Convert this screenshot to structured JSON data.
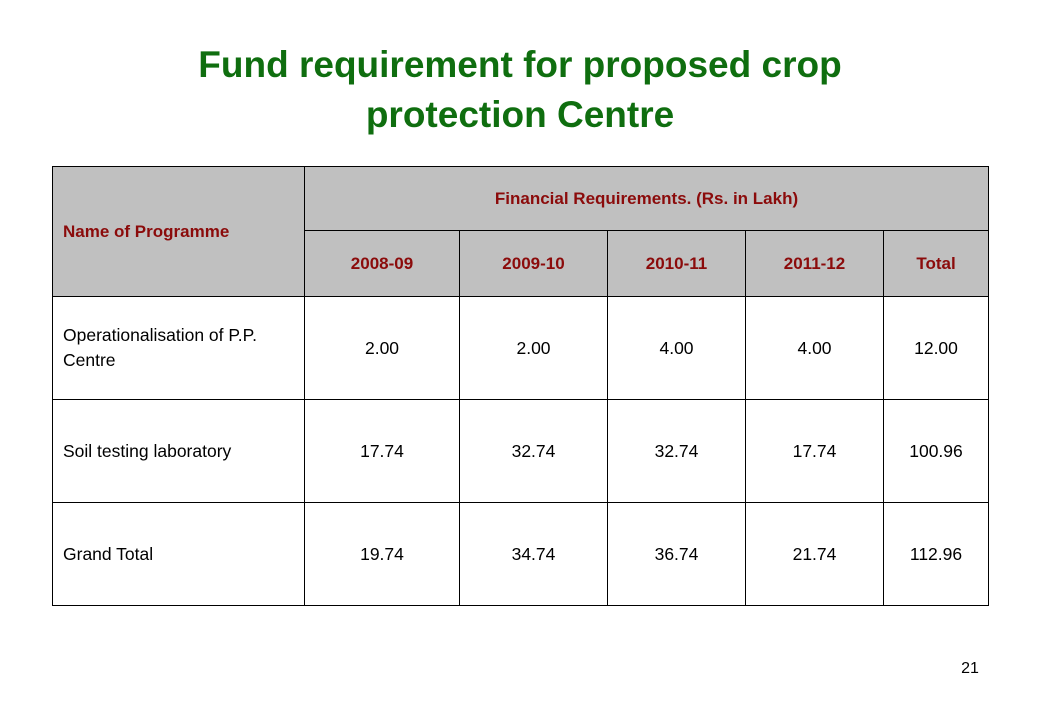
{
  "slide": {
    "title_line1": "Fund requirement for proposed crop",
    "title_line2": "protection Centre",
    "page_number": "21",
    "title_color": "#0f6e0f",
    "header_text_color": "#8b0b0b",
    "header_bg_color": "#c0c0c0"
  },
  "table": {
    "name_header": "Name of Programme",
    "group_header": "Financial Requirements. (Rs. in Lakh)",
    "columns": [
      "2008-09",
      "2009-10",
      "2010-11",
      "2011-12",
      "Total"
    ],
    "rows": [
      {
        "name": "Operationalisation of P.P. Centre",
        "values": [
          "2.00",
          "2.00",
          "4.00",
          "4.00",
          "12.00"
        ]
      },
      {
        "name": "Soil testing laboratory",
        "values": [
          "17.74",
          "32.74",
          "32.74",
          "17.74",
          "100.96"
        ]
      },
      {
        "name": "Grand Total",
        "values": [
          "19.74",
          "34.74",
          "36.74",
          "21.74",
          "112.96"
        ]
      }
    ]
  }
}
